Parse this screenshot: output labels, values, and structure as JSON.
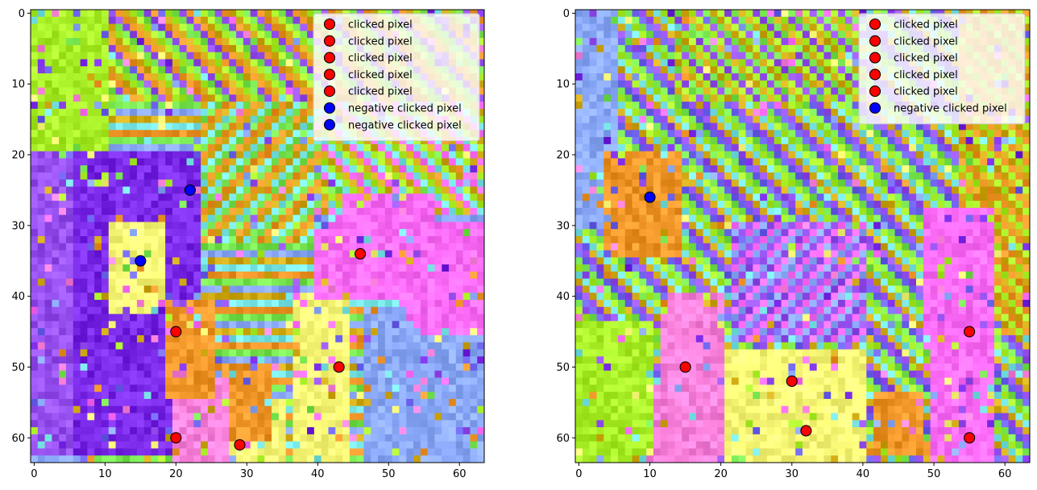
{
  "chart_data": [
    {
      "type": "scatter",
      "background": "pixelated-feature-map",
      "xlim": [
        -0.5,
        63.5
      ],
      "ylim": [
        63.5,
        -0.5
      ],
      "xticks": [
        0,
        10,
        20,
        30,
        40,
        50,
        60
      ],
      "yticks": [
        0,
        10,
        20,
        30,
        40,
        50,
        60
      ],
      "legend_position": "top-right",
      "series": [
        {
          "name": "clicked pixel",
          "color": "#ff0000",
          "points": [
            [
              46,
              34
            ],
            [
              20,
              45
            ],
            [
              43,
              50
            ],
            [
              20,
              60
            ],
            [
              29,
              61
            ]
          ]
        },
        {
          "name": "negative clicked pixel",
          "color": "#0000ff",
          "points": [
            [
              22,
              25
            ],
            [
              15,
              35
            ]
          ]
        }
      ],
      "legend_entries": [
        "clicked pixel",
        "clicked pixel",
        "clicked pixel",
        "clicked pixel",
        "clicked pixel",
        "negative clicked pixel",
        "negative clicked pixel"
      ]
    },
    {
      "type": "scatter",
      "background": "pixelated-feature-map",
      "xlim": [
        -0.5,
        63.5
      ],
      "ylim": [
        63.5,
        -0.5
      ],
      "xticks": [
        0,
        10,
        20,
        30,
        40,
        50,
        60
      ],
      "yticks": [
        0,
        10,
        20,
        30,
        40,
        50,
        60
      ],
      "legend_position": "top-right",
      "series": [
        {
          "name": "clicked pixel",
          "color": "#ff0000",
          "points": [
            [
              55,
              45
            ],
            [
              15,
              50
            ],
            [
              30,
              52
            ],
            [
              32,
              59
            ],
            [
              55,
              60
            ]
          ]
        },
        {
          "name": "negative clicked pixel",
          "color": "#0000ff",
          "points": [
            [
              10,
              26
            ]
          ]
        }
      ],
      "legend_entries": [
        "clicked pixel",
        "clicked pixel",
        "clicked pixel",
        "clicked pixel",
        "clicked pixel",
        "negative clicked pixel"
      ]
    }
  ]
}
